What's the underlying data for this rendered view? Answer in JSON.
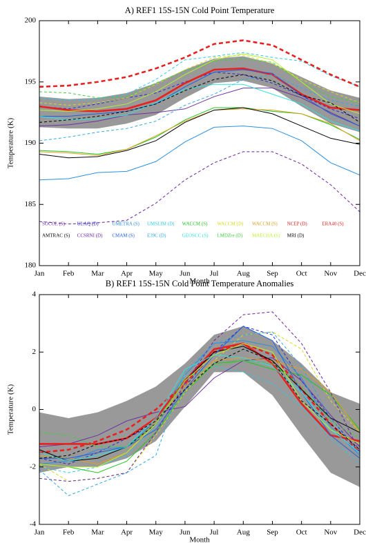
{
  "chart_data": [
    {
      "type": "line",
      "title": "A) REF1 15S-15N Cold Point Temperature",
      "xlabel": "Month",
      "ylabel": "Temperature (K)",
      "categories": [
        "Jan",
        "Feb",
        "Mar",
        "Apr",
        "May",
        "Jun",
        "Jul",
        "Aug",
        "Sep",
        "Oct",
        "Nov",
        "Dec"
      ],
      "ylim": [
        180,
        200
      ],
      "yticks": [
        180,
        185,
        190,
        195,
        200
      ],
      "band": {
        "color": "#999999",
        "low": [
          191.3,
          191.2,
          191.2,
          191.6,
          192.3,
          193.7,
          194.9,
          195.1,
          194.5,
          193.0,
          191.6,
          190.9
        ],
        "high": [
          193.8,
          193.6,
          193.7,
          194.1,
          194.9,
          196.0,
          196.9,
          197.1,
          196.5,
          195.4,
          194.3,
          193.7
        ]
      },
      "series": [
        {
          "name": "SOCOL (S)",
          "color": "#7030a0",
          "dashed": false,
          "values": [
            191.4,
            191.5,
            191.8,
            192.3,
            192.5,
            192.8,
            193.8,
            194.5,
            194.5,
            193.7,
            192.5,
            191.4
          ]
        },
        {
          "name": "ULAQ (D)",
          "color": "#2828d0",
          "dashed": true,
          "values": [
            193.0,
            192.8,
            193.2,
            193.7,
            194.1,
            195.0,
            195.8,
            195.6,
            194.9,
            193.9,
            192.8,
            192.0
          ]
        },
        {
          "name": "UMETRA (S)",
          "color": "#2890e0",
          "dashed": false,
          "values": [
            187.0,
            187.1,
            187.6,
            187.7,
            188.5,
            190.1,
            191.3,
            191.4,
            191.2,
            190.2,
            188.4,
            187.4
          ]
        },
        {
          "name": "UMSLIM (D)",
          "color": "#30c8e8",
          "dashed": true,
          "values": [
            193.7,
            193.5,
            193.6,
            194.0,
            195.2,
            196.8,
            197.1,
            197.4,
            197.0,
            196.7,
            195.5,
            194.6
          ]
        },
        {
          "name": "WACCM (S)",
          "color": "#20c820",
          "dashed": false,
          "values": [
            189.4,
            189.3,
            189.1,
            189.5,
            190.5,
            191.9,
            192.9,
            192.9,
            192.6,
            192.4,
            191.5,
            190.3
          ]
        },
        {
          "name": "WACCM (D)",
          "color": "#d8d820",
          "dashed": true,
          "values": [
            193.3,
            193.1,
            193.3,
            193.7,
            194.8,
            196.0,
            197.0,
            197.2,
            196.5,
            195.2,
            194.2,
            193.3
          ]
        },
        {
          "name": "WACCM (S)",
          "color": "#e0a020",
          "dashed": false,
          "values": [
            189.3,
            189.2,
            189.0,
            189.5,
            190.6,
            191.8,
            192.7,
            192.8,
            192.7,
            192.4,
            191.6,
            190.2
          ]
        },
        {
          "name": "NCEP (D)",
          "color": "#e82020",
          "dashed": true,
          "emphasis": true,
          "values": [
            194.6,
            194.7,
            195.0,
            195.4,
            196.1,
            197.0,
            198.1,
            198.4,
            198.0,
            196.8,
            195.6,
            194.6
          ]
        },
        {
          "name": "ERA40 (S)",
          "color": "#e82020",
          "dashed": false,
          "emphasis": true,
          "values": [
            193.0,
            192.7,
            192.6,
            192.8,
            193.5,
            194.9,
            196.0,
            196.1,
            195.6,
            194.0,
            192.9,
            192.7
          ]
        },
        {
          "name": "AMTRAC (S)",
          "color": "#000000",
          "dashed": false,
          "values": [
            189.1,
            188.8,
            188.9,
            189.4,
            190.2,
            191.7,
            192.7,
            192.9,
            192.4,
            191.4,
            190.4,
            189.9
          ]
        },
        {
          "name": "CCSRNI (D)",
          "color": "#6a20a0",
          "dashed": true,
          "values": [
            183.6,
            183.4,
            183.5,
            183.7,
            185.1,
            187.0,
            188.4,
            189.3,
            189.3,
            188.3,
            186.6,
            184.4
          ]
        },
        {
          "name": "CMAM (S)",
          "color": "#2060e0",
          "dashed": false,
          "values": [
            192.2,
            192.2,
            192.4,
            192.6,
            193.2,
            194.6,
            195.8,
            196.0,
            195.7,
            193.9,
            192.4,
            191.4
          ]
        },
        {
          "name": "E39C (D)",
          "color": "#30a8e8",
          "dashed": true,
          "values": [
            190.2,
            190.5,
            190.9,
            191.2,
            191.8,
            193.1,
            194.0,
            195.2,
            195.6,
            194.5,
            193.5,
            193.0
          ]
        },
        {
          "name": "GEOSCC (S)",
          "color": "#30e0e0",
          "dashed": false,
          "values": [
            192.2,
            191.9,
            192.0,
            192.3,
            193.3,
            194.4,
            194.8,
            194.8,
            194.0,
            193.2,
            191.8,
            191.0
          ]
        },
        {
          "name": "LMDZre (D)",
          "color": "#40d040",
          "dashed": true,
          "values": [
            194.2,
            194.1,
            193.7,
            193.8,
            194.9,
            195.9,
            196.7,
            196.9,
            196.6,
            195.0,
            193.8,
            193.3
          ]
        },
        {
          "name": "MAECHA (S)",
          "color": "#b8f030",
          "dashed": false,
          "values": [
            192.7,
            192.6,
            192.8,
            193.2,
            194.2,
            195.6,
            196.8,
            197.3,
            196.8,
            195.0,
            193.2,
            192.4
          ]
        },
        {
          "name": "MRI (D)",
          "color": "#000000",
          "dashed": true,
          "values": [
            191.7,
            191.9,
            192.2,
            192.6,
            193.2,
            194.3,
            195.2,
            195.6,
            195.1,
            193.9,
            193.3,
            191.7
          ]
        }
      ]
    },
    {
      "type": "line",
      "title": "B) REF1 15S-15N Cold Point Temperature Anomalies",
      "xlabel": "Month",
      "ylabel": "Temperature (K)",
      "categories": [
        "Jan",
        "Feb",
        "Mar",
        "Apr",
        "May",
        "Jun",
        "Jul",
        "Aug",
        "Sep",
        "Oct",
        "Nov",
        "Dec"
      ],
      "ylim": [
        -4,
        4
      ],
      "yticks": [
        -4,
        -2,
        0,
        2,
        4
      ],
      "band": {
        "color": "#999999",
        "low": [
          -2.2,
          -2.0,
          -2.0,
          -1.7,
          -1.1,
          0.1,
          1.3,
          1.3,
          0.5,
          -0.9,
          -2.2,
          -2.7
        ],
        "high": [
          -0.1,
          -0.3,
          -0.1,
          0.3,
          0.8,
          1.6,
          2.6,
          2.9,
          2.4,
          1.6,
          0.6,
          0.2
        ]
      },
      "series": [
        {
          "color": "#7030a0",
          "dashed": false,
          "values": [
            -1.3,
            -1.2,
            -0.9,
            -0.4,
            -0.1,
            0.1,
            1.1,
            1.7,
            1.8,
            1.0,
            -0.2,
            -1.3
          ]
        },
        {
          "color": "#2828d0",
          "dashed": true,
          "values": [
            -1.7,
            -1.9,
            -1.5,
            -1.0,
            -0.5,
            0.8,
            2.0,
            2.9,
            2.6,
            1.0,
            -0.3,
            -1.5
          ]
        },
        {
          "color": "#2890e0",
          "dashed": false,
          "values": [
            -1.9,
            -1.8,
            -1.4,
            -1.3,
            -0.4,
            1.2,
            2.3,
            2.4,
            2.2,
            1.1,
            -0.6,
            -1.6
          ]
        },
        {
          "color": "#30c8e8",
          "dashed": true,
          "values": [
            -2.0,
            -2.2,
            -2.0,
            -1.6,
            -0.6,
            1.2,
            1.5,
            1.3,
            0.9,
            0.1,
            -1.0,
            -1.9
          ]
        },
        {
          "color": "#20c820",
          "dashed": false,
          "values": [
            -1.9,
            -2.0,
            -2.2,
            -1.8,
            -0.8,
            0.6,
            1.6,
            1.7,
            1.4,
            1.2,
            0.5,
            -0.7
          ]
        },
        {
          "color": "#d8d820",
          "dashed": true,
          "values": [
            -1.9,
            -2.5,
            -2.4,
            -2.2,
            -0.9,
            0.6,
            1.7,
            2.6,
            2.7,
            2.1,
            0.3,
            -0.8
          ]
        },
        {
          "color": "#e0a020",
          "dashed": false,
          "values": [
            -1.6,
            -1.7,
            -1.9,
            -1.5,
            -0.4,
            0.8,
            1.7,
            1.8,
            1.7,
            1.4,
            0.6,
            -0.8
          ]
        },
        {
          "color": "#e82020",
          "dashed": true,
          "emphasis": true,
          "values": [
            -1.5,
            -1.4,
            -1.1,
            -0.7,
            0.0,
            0.9,
            2.0,
            2.3,
            1.9,
            0.7,
            -0.5,
            -1.5
          ]
        },
        {
          "color": "#e82020",
          "dashed": false,
          "emphasis": true,
          "values": [
            -1.2,
            -1.2,
            -1.2,
            -1.0,
            -0.3,
            1.0,
            2.1,
            2.3,
            1.6,
            0.2,
            -0.9,
            -1.1
          ]
        },
        {
          "color": "#000000",
          "dashed": false,
          "values": [
            -1.4,
            -1.8,
            -1.7,
            -1.3,
            -0.5,
            1.0,
            2.0,
            2.2,
            1.7,
            0.7,
            -0.3,
            -0.8
          ]
        },
        {
          "color": "#6a20a0",
          "dashed": true,
          "values": [
            -2.4,
            -2.5,
            -2.4,
            -2.2,
            -0.8,
            0.9,
            2.4,
            3.3,
            3.4,
            2.3,
            0.6,
            -1.5
          ]
        },
        {
          "color": "#2060e0",
          "dashed": false,
          "values": [
            -1.7,
            -1.7,
            -1.5,
            -1.3,
            -0.7,
            0.7,
            1.9,
            2.9,
            2.4,
            0.6,
            -0.9,
            -1.7
          ]
        },
        {
          "color": "#30a8e8",
          "dashed": true,
          "values": [
            -2.1,
            -3.0,
            -2.6,
            -2.2,
            -1.6,
            1.3,
            2.3,
            2.6,
            2.7,
            1.5,
            -0.3,
            -1.6
          ]
        },
        {
          "color": "#30e0e0",
          "dashed": false,
          "values": [
            -1.5,
            -1.8,
            -1.6,
            -1.3,
            -0.3,
            1.4,
            1.9,
            1.8,
            1.5,
            0.6,
            -0.7,
            -1.5
          ]
        },
        {
          "color": "#40d040",
          "dashed": true,
          "values": [
            -0.8,
            -0.9,
            -1.3,
            -1.3,
            -0.5,
            1.1,
            1.5,
            1.7,
            1.6,
            0.8,
            -0.4,
            -1.0
          ]
        },
        {
          "color": "#b8f030",
          "dashed": false,
          "values": [
            -1.9,
            -2.0,
            -2.0,
            -1.5,
            -0.5,
            1.0,
            1.9,
            2.3,
            2.0,
            0.3,
            -0.7,
            -1.2
          ]
        },
        {
          "color": "#000000",
          "dashed": true,
          "values": [
            -1.7,
            -1.6,
            -1.2,
            -1.0,
            -0.4,
            0.7,
            1.6,
            2.1,
            1.7,
            0.3,
            -0.5,
            -1.4
          ]
        }
      ]
    }
  ]
}
